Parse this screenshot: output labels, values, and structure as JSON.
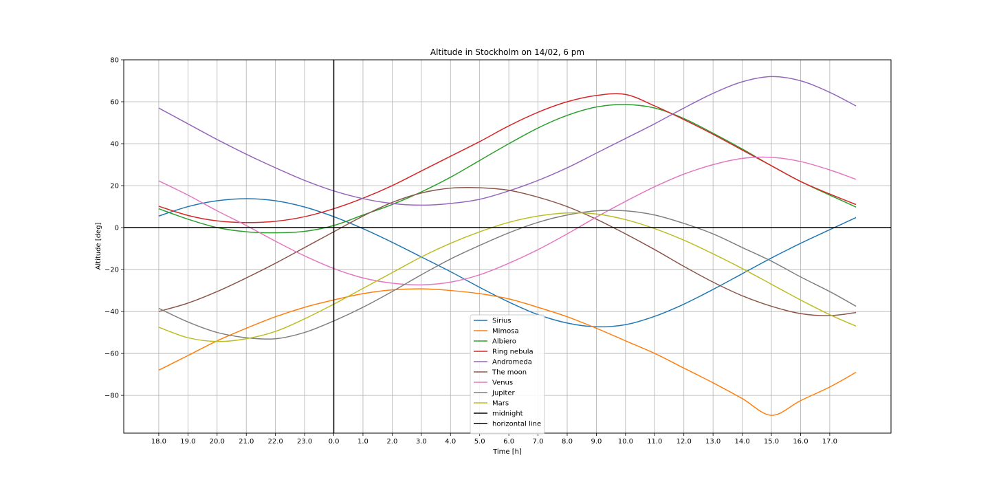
{
  "chart_data": {
    "type": "line",
    "title": "Altitude in Stockholm on 14/02, 6 pm",
    "xlabel": "Time [h]",
    "ylabel": "Altitude [deg]",
    "xlim": [
      -1.2,
      25.1
    ],
    "ylim": [
      -98,
      80
    ],
    "yticks": [
      -80,
      -60,
      -40,
      -20,
      0,
      20,
      40,
      60,
      80
    ],
    "xticks": [
      {
        "pos": 0,
        "label": "18.0"
      },
      {
        "pos": 1,
        "label": "19.0"
      },
      {
        "pos": 2,
        "label": "20.0"
      },
      {
        "pos": 3,
        "label": "21.0"
      },
      {
        "pos": 4,
        "label": "22.0"
      },
      {
        "pos": 5,
        "label": "23.0"
      },
      {
        "pos": 6,
        "label": "0.0"
      },
      {
        "pos": 7,
        "label": "1.0"
      },
      {
        "pos": 8,
        "label": "2.0"
      },
      {
        "pos": 9,
        "label": "3.0"
      },
      {
        "pos": 10,
        "label": "4.0"
      },
      {
        "pos": 11,
        "label": "5.0"
      },
      {
        "pos": 12,
        "label": "6.0"
      },
      {
        "pos": 13,
        "label": "7.0"
      },
      {
        "pos": 14,
        "label": "8.0"
      },
      {
        "pos": 15,
        "label": "9.0"
      },
      {
        "pos": 16,
        "label": "10.0"
      },
      {
        "pos": 17,
        "label": "11.0"
      },
      {
        "pos": 18,
        "label": "12.0"
      },
      {
        "pos": 19,
        "label": "13.0"
      },
      {
        "pos": 20,
        "label": "14.0"
      },
      {
        "pos": 21,
        "label": "15.0"
      },
      {
        "pos": 22,
        "label": "16.0"
      },
      {
        "pos": 23,
        "label": "17.0"
      }
    ],
    "grid": true,
    "legend_position": "lower-center",
    "x": [
      0,
      1,
      2,
      3,
      4,
      5,
      6,
      7,
      8,
      9,
      10,
      11,
      12,
      13,
      14,
      15,
      16,
      17,
      18,
      19,
      20,
      21,
      22,
      23,
      23.9
    ],
    "series": [
      {
        "name": "Sirius",
        "color": "#1f77b4",
        "values": [
          5.5,
          10,
          12.8,
          13.8,
          12.8,
          9.8,
          5.2,
          -0.5,
          -7,
          -14,
          -21,
          -28.5,
          -35.5,
          -41.5,
          -45.5,
          -47.3,
          -46.3,
          -42.3,
          -36.5,
          -29.5,
          -22,
          -14.5,
          -7.5,
          -1,
          4.8
        ]
      },
      {
        "name": "Mimosa",
        "color": "#ff7f0e",
        "values": [
          -68,
          -61,
          -54,
          -48,
          -42.5,
          -38,
          -34.5,
          -31.5,
          -29.7,
          -29.2,
          -30,
          -31.5,
          -34,
          -38,
          -42.5,
          -48,
          -54,
          -60,
          -67,
          -74,
          -81.5,
          -89.5,
          -82.5,
          -76,
          -69
        ]
      },
      {
        "name": "Albiero",
        "color": "#2ca02c",
        "values": [
          9,
          4,
          0,
          -2,
          -2.5,
          -1.8,
          1,
          6,
          11,
          17,
          24,
          32,
          40,
          47.5,
          53.5,
          57.5,
          58.7,
          57,
          52,
          45,
          37.5,
          29.5,
          22,
          15.5,
          9.8
        ]
      },
      {
        "name": "Ring nebula",
        "color": "#d62728",
        "values": [
          10.2,
          5.8,
          3.2,
          2.4,
          3,
          5.2,
          9,
          14,
          20,
          27,
          34,
          41,
          48.5,
          55,
          60,
          63,
          63.5,
          58,
          51.5,
          44.5,
          37,
          29.5,
          22,
          16,
          11
        ]
      },
      {
        "name": "Andromeda",
        "color": "#9467bd",
        "values": [
          57,
          49.5,
          42,
          35,
          28.5,
          22.5,
          17.5,
          13.8,
          11.5,
          10.7,
          11.5,
          13.5,
          17.5,
          22.5,
          28.5,
          35.5,
          42.5,
          49.5,
          57,
          64,
          69.5,
          72,
          70,
          64.5,
          58
        ]
      },
      {
        "name": "The moon",
        "color": "#8c564b",
        "values": [
          -40,
          -36,
          -30.5,
          -24,
          -17,
          -9.5,
          -2,
          5.5,
          12,
          16.5,
          18.8,
          19,
          17.8,
          14.5,
          10,
          4,
          -3,
          -10.5,
          -18.5,
          -26,
          -32.5,
          -37.5,
          -41,
          -42,
          -40.5
        ]
      },
      {
        "name": "Venus",
        "color": "#e377c2",
        "values": [
          22.3,
          15.5,
          8,
          1,
          -6.5,
          -13.5,
          -19.5,
          -24,
          -26.5,
          -27.3,
          -26,
          -22.5,
          -17,
          -10.5,
          -3,
          5,
          12.5,
          19.5,
          25.5,
          30,
          33,
          33.5,
          31.5,
          27.5,
          23
        ]
      },
      {
        "name": "Jupiter",
        "color": "#7f7f7f",
        "values": [
          -38.5,
          -45,
          -50,
          -52.5,
          -53,
          -50,
          -44.5,
          -38,
          -30.5,
          -22.5,
          -15,
          -8.5,
          -2.5,
          2.5,
          6,
          8,
          8,
          6,
          2,
          -3,
          -9.5,
          -16,
          -23.5,
          -30.5,
          -37.5
        ]
      },
      {
        "name": "Mars",
        "color": "#bcbd22",
        "values": [
          -47.5,
          -52.5,
          -54.3,
          -53,
          -49.5,
          -43.5,
          -36.5,
          -29,
          -21.5,
          -14,
          -7.5,
          -2,
          2.5,
          5.5,
          7,
          6.5,
          3.8,
          -0.5,
          -6,
          -12.5,
          -19.5,
          -27,
          -34.5,
          -41.5,
          -47
        ]
      },
      {
        "name": "midnight",
        "color": "#000000",
        "kind": "vline",
        "x": 6
      },
      {
        "name": "horizontal line",
        "color": "#000000",
        "kind": "hline",
        "y": 0
      }
    ]
  }
}
